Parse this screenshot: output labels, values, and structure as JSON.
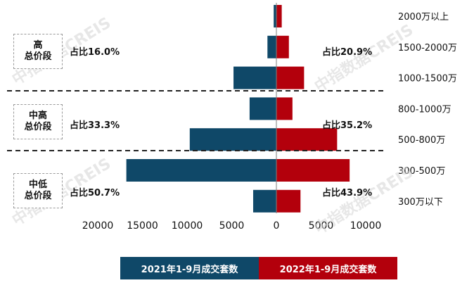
{
  "colors": {
    "y2021": "#0f4868",
    "y2022": "#b3000c",
    "divider": "#222222",
    "axis": "#7f7f7f"
  },
  "watermark": "中指数据CREIS",
  "segments": [
    {
      "label_line1": "高",
      "label_line2": "总价段",
      "share_2021": "占比16.0%",
      "share_2022": "占比20.9%"
    },
    {
      "label_line1": "中高",
      "label_line2": "总价段",
      "share_2021": "占比33.3%",
      "share_2022": "占比35.2%"
    },
    {
      "label_line1": "中低",
      "label_line2": "总价段",
      "share_2021": "占比50.7%",
      "share_2022": "占比43.9%"
    }
  ],
  "legend": {
    "y2021": "2021年1-9月成交套数",
    "y2022": "2022年1-9月成交套数"
  },
  "chart_data": {
    "type": "bar",
    "orientation": "horizontal-diverging",
    "categories": [
      "2000万以上",
      "1500-2000万",
      "1000-1500万",
      "800-1000万",
      "500-800万",
      "300-500万",
      "300万以下"
    ],
    "series": [
      {
        "name": "2021年1-9月成交套数",
        "values": [
          300,
          1000,
          4800,
          3000,
          9700,
          16800,
          2600
        ],
        "side": "left"
      },
      {
        "name": "2022年1-9月成交套数",
        "values": [
          600,
          1400,
          3100,
          1800,
          6800,
          8200,
          2700
        ],
        "side": "right"
      }
    ],
    "xticks": [
      "20000",
      "15000",
      "10000",
      "5000",
      "0",
      "5000",
      "10000"
    ],
    "xlim": [
      -20000,
      10000
    ],
    "legend_position": "bottom"
  }
}
